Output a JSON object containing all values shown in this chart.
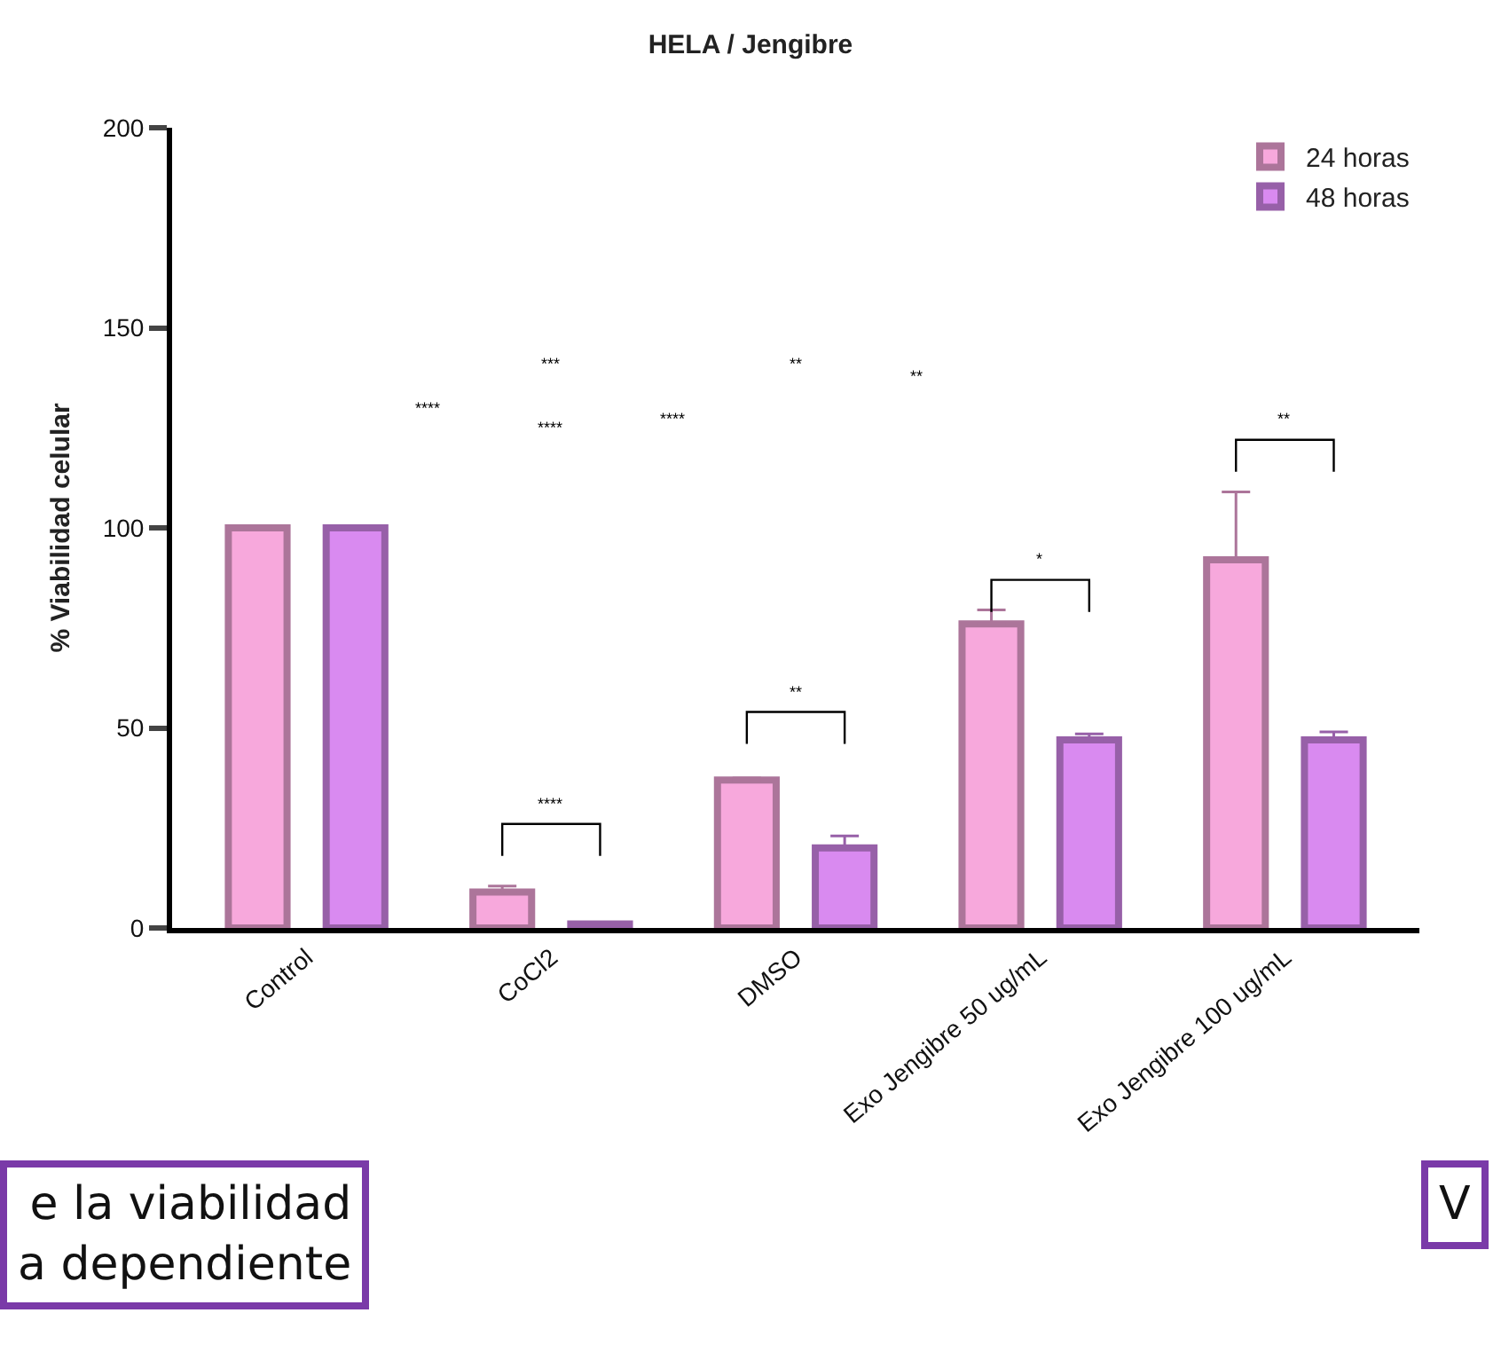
{
  "chart_data": {
    "type": "bar",
    "title": "HELA / Jengibre",
    "ylabel": "% Viabilidad celular",
    "categories": [
      "Control",
      "CoCl2",
      "DMSO",
      "Exo Jengibre 50 ug/mL",
      "Exo Jengibre 100 ug/mL"
    ],
    "series": [
      {
        "name": "24 horas",
        "color": "#f7a8dc",
        "values": [
          100,
          9,
          37,
          76,
          92
        ],
        "errors": [
          null,
          1.5,
          0.5,
          3.5,
          17
        ]
      },
      {
        "name": "48 horas",
        "color": "#d98af0",
        "values": [
          100,
          1,
          20,
          47,
          47
        ],
        "errors": [
          null,
          null,
          3,
          1.5,
          2
        ]
      }
    ],
    "ylim": [
      0,
      200
    ],
    "yticks": [
      0,
      50,
      100,
      150,
      200
    ],
    "legend": "top right",
    "annotations": [
      "****",
      "**",
      "*",
      "**",
      "***",
      "**",
      "**",
      "****",
      "****",
      "****",
      "e la viabilidad\na dependiente",
      "V"
    ]
  }
}
